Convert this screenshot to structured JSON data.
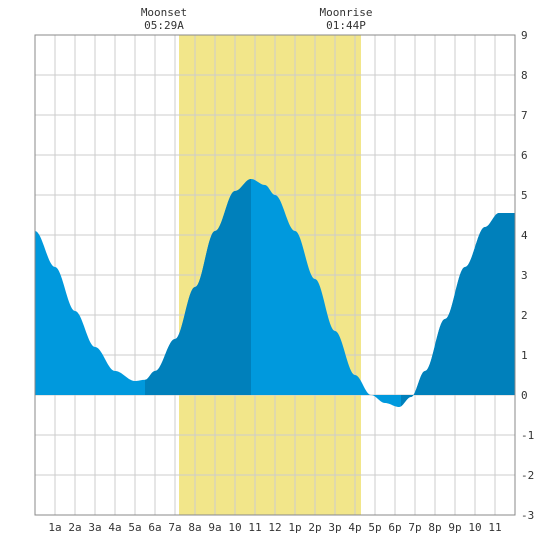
{
  "chart_data": {
    "type": "area",
    "title": "",
    "xlabel": "",
    "ylabel": "",
    "x_tick_labels": [
      "1a",
      "2a",
      "3a",
      "4a",
      "5a",
      "6a",
      "7a",
      "8a",
      "9a",
      "10",
      "11",
      "12",
      "1p",
      "2p",
      "3p",
      "4p",
      "5p",
      "6p",
      "7p",
      "8p",
      "9p",
      "10",
      "11"
    ],
    "y_ticks": [
      -3,
      -2,
      -1,
      0,
      1,
      2,
      3,
      4,
      5,
      6,
      7,
      8,
      9
    ],
    "xlim": [
      0,
      24
    ],
    "ylim": [
      -3,
      9
    ],
    "grid": true,
    "series": [
      {
        "points": [
          [
            0,
            4.1
          ],
          [
            1,
            3.2
          ],
          [
            2,
            2.1
          ],
          [
            3,
            1.2
          ],
          [
            4,
            0.6
          ],
          [
            5,
            0.35
          ],
          [
            5.5,
            0.38
          ],
          [
            6,
            0.6
          ],
          [
            7,
            1.4
          ],
          [
            8,
            2.7
          ],
          [
            9,
            4.1
          ],
          [
            10,
            5.1
          ],
          [
            10.8,
            5.4
          ],
          [
            11.5,
            5.25
          ],
          [
            12,
            5.0
          ],
          [
            13,
            4.1
          ],
          [
            14,
            2.9
          ],
          [
            15,
            1.6
          ],
          [
            16,
            0.5
          ],
          [
            16.8,
            0.0
          ],
          [
            17.5,
            -0.2
          ],
          [
            18.2,
            -0.3
          ],
          [
            18.8,
            -0.05
          ],
          [
            19.5,
            0.6
          ],
          [
            20.5,
            1.9
          ],
          [
            21.5,
            3.2
          ],
          [
            22.5,
            4.2
          ],
          [
            23.2,
            4.55
          ],
          [
            24,
            4.55
          ]
        ]
      }
    ],
    "moon_band": {
      "start": 7.2,
      "end": 16.3
    },
    "dark_band": {
      "start": 5.5,
      "end": 10.8
    },
    "dark_band_2": {
      "start": 18.3,
      "end": 24
    },
    "annotations": [
      {
        "label": "Moonset",
        "time": "05:29A",
        "x": 7.2
      },
      {
        "label": "Moonrise",
        "time": "01:44P",
        "x": 16.3
      }
    ],
    "colors": {
      "water": "#0099dd",
      "water_dark": "#0080bb",
      "moon_band": "#f2e68a",
      "grid": "#cccccc",
      "border": "#888888"
    }
  }
}
